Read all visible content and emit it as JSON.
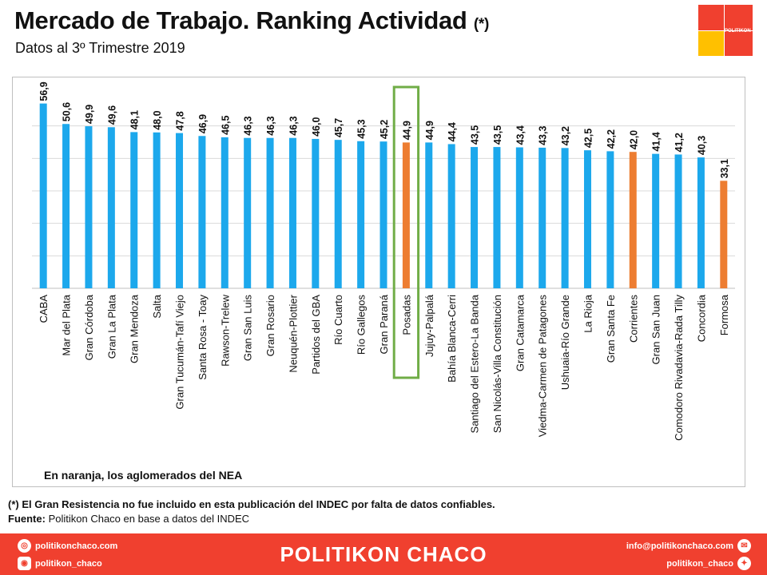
{
  "header": {
    "title": "Mercado de Trabajo. Ranking Actividad",
    "title_note": "(*)",
    "subtitle": "Datos al 3º Trimestre 2019"
  },
  "logo": {
    "text": "POLITIKON",
    "colors": [
      "#f0402f",
      "#ffc000"
    ]
  },
  "chart_data": {
    "type": "bar",
    "categories": [
      "CABA",
      "Mar del Plata",
      "Gran Córdoba",
      "Gran La Plata",
      "Gran Mendoza",
      "Salta",
      "Gran Tucumán-Tafí Viejo",
      "Santa Rosa - Toay",
      "Rawson-Trelew",
      "Gran San Luis",
      "Gran Rosario",
      "Neuquén-Plottier",
      "Partidos del GBA",
      "Río Cuarto",
      "Río Gallegos",
      "Gran Paraná",
      "Posadas",
      "Jujuy-Palpalá",
      "Bahía Blanca-Cerri",
      "Santiago del Estero-La Banda",
      "San Nicolás-Villa Constitución",
      "Gran Catamarca",
      "Viedma-Carmen de Patagones",
      "Ushuaia-Río Grande",
      "La Rioja",
      "Gran Santa Fe",
      "Corrientes",
      "Gran San Juan",
      "Comodoro Rivadavia-Rada Tilly",
      "Concordia",
      "Formosa"
    ],
    "values": [
      56.9,
      50.6,
      49.9,
      49.6,
      48.1,
      48.0,
      47.8,
      46.9,
      46.5,
      46.3,
      46.3,
      46.3,
      46.0,
      45.7,
      45.3,
      45.2,
      44.9,
      44.9,
      44.4,
      43.5,
      43.5,
      43.4,
      43.3,
      43.2,
      42.5,
      42.2,
      42.0,
      41.4,
      41.2,
      40.3,
      33.1
    ],
    "data_labels": [
      "56,9",
      "50,6",
      "49,9",
      "49,6",
      "48,1",
      "48,0",
      "47,8",
      "46,9",
      "46,5",
      "46,3",
      "46,3",
      "46,3",
      "46,0",
      "45,7",
      "45,3",
      "45,2",
      "44,9",
      "44,9",
      "44,4",
      "43,5",
      "43,5",
      "43,4",
      "43,3",
      "43,2",
      "42,5",
      "42,2",
      "42,0",
      "41,4",
      "41,2",
      "40,3",
      "33,1"
    ],
    "highlight_nea": [
      "Posadas",
      "Corrientes",
      "Formosa"
    ],
    "boxed_category": "Posadas",
    "ylim": [
      0,
      60
    ],
    "grid": true,
    "y_tick_labels_shown": false,
    "colors": {
      "default": "#1ca8ec",
      "nea": "#ed7d31",
      "box": "#70ad47",
      "grid": "#d9d9d9"
    }
  },
  "nea_note": "En naranja, los aglomerados del NEA",
  "footnote": "(*) El Gran Resistencia no fue incluido en esta publicación del INDEC por falta de datos confiables.",
  "source": {
    "label": "Fuente:",
    "text": "Politikon Chaco en base a datos del INDEC"
  },
  "footer": {
    "brand": "POLITIKON CHACO",
    "website": "politikonchaco.com",
    "instagram": "politikon_chaco",
    "email": "info@politikonchaco.com",
    "twitter": "politikon_chaco",
    "icons": [
      "globe-icon",
      "instagram-icon",
      "mail-icon",
      "twitter-icon"
    ]
  }
}
